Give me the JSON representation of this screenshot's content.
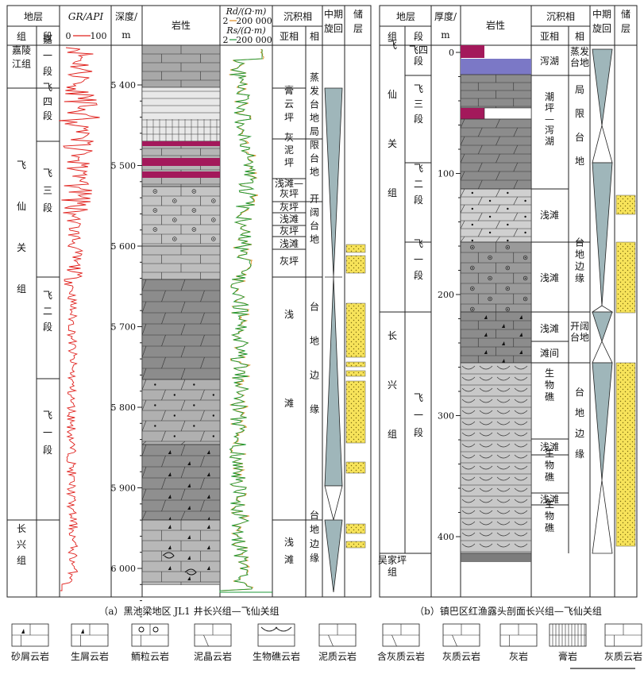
{
  "left": {
    "header": {
      "stratum": "地层",
      "group": "组",
      "member": "段",
      "gr_title": "GR/API",
      "gr_min": "0",
      "gr_max": "100",
      "depth": "深度/",
      "depth_unit": "m",
      "lithology": "岩性",
      "rd_label": "Rd/(Ω·m)",
      "rd_range_min": "2",
      "rd_range_max": "200 000",
      "rs_label": "Rs/(Ω·m)",
      "rs_range_min": "2",
      "rs_range_max": "200 000",
      "facies": "沉积相",
      "subfacies": "亚相",
      "facies_col": "相",
      "cycle": "中期旋回",
      "reservoir": "储层"
    },
    "groups": [
      "嘉陵江组",
      "飞仙关组",
      "长兴组"
    ],
    "members": [
      "嘉一段",
      "飞四段",
      "飞三段",
      "飞二段",
      "飞一段"
    ],
    "depth_ticks": [
      "5 400",
      "5 500",
      "5 600",
      "5 700",
      "5 800",
      "5 900",
      "6 000"
    ],
    "subfacies": [
      "膏云坪",
      "灰泥坪",
      "浅滩—灰坪",
      "灰坪",
      "浅滩",
      "灰坪",
      "浅滩",
      "灰坪",
      "浅滩",
      "浅滩"
    ],
    "facies": [
      "蒸发台地",
      "局限台地",
      "开阔台地",
      "台地边缘",
      "台地边缘"
    ],
    "caption": "（a）黑池梁地区 JL1 井长兴组—飞仙关组"
  },
  "right": {
    "header": {
      "stratum": "地层",
      "group": "组",
      "member": "段",
      "thickness": "厚度/",
      "thickness_unit": "m",
      "lithology": "岩性",
      "facies": "沉积相",
      "subfacies": "亚相",
      "facies_col": "相",
      "cycle": "中期旋回",
      "reservoir": "储层"
    },
    "groups": [
      "飞仙关组",
      "长兴组",
      "吴家坪组"
    ],
    "members": [
      "飞四段",
      "飞三段",
      "飞二段",
      "飞一段",
      "飞一段"
    ],
    "thickness_ticks": [
      "0",
      "100",
      "200",
      "300",
      "400"
    ],
    "subfacies": [
      "泻湖",
      "潮坪—泻湖",
      "浅滩",
      "浅滩",
      "浅滩",
      "滩间",
      "生物礁",
      "浅滩",
      "生物礁",
      "浅滩",
      "生物礁"
    ],
    "facies": [
      "蒸发台地",
      "局限台地",
      "台地边缘",
      "开阔台地",
      "台地边缘"
    ],
    "caption": "（b）镇巴区红渔露头剖面长兴组—飞仙关组"
  },
  "legend": [
    "砂屑云岩",
    "生屑云岩",
    "鲕粒云岩",
    "泥晶云岩",
    "生物礁云岩",
    "泥质云岩",
    "含灰质云岩",
    "灰质云岩",
    "灰岩",
    "膏岩",
    "灰质云岩"
  ],
  "colors": {
    "gr_curve": "#e0201c",
    "rd_curve": "#1e9a38",
    "rs_curve": "#e08a1e",
    "lith_dark": "#7c7c7c",
    "lith_mid": "#a8a8a8",
    "lith_light": "#d0d0d0",
    "mud": "#a3195b",
    "lagoon": "#7b78c6",
    "cycle": "#9fb6ba",
    "reservoir": "#f7e35a"
  }
}
